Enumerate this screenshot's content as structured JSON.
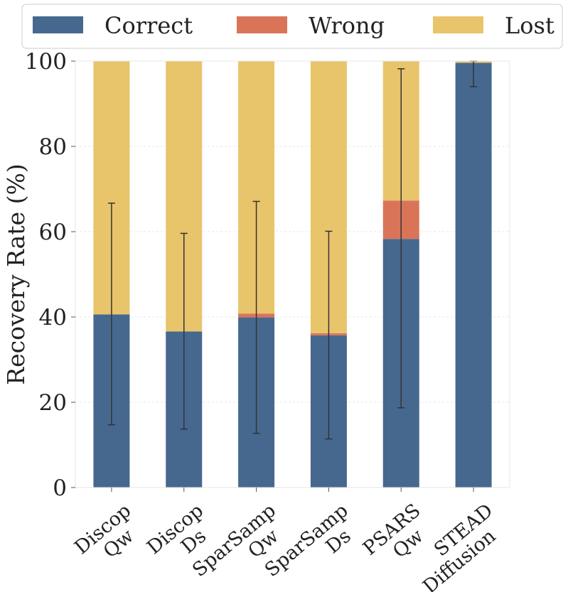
{
  "chart_data": {
    "type": "bar",
    "stacked": true,
    "categories": [
      [
        "Discop",
        "Qw"
      ],
      [
        "Discop",
        "Ds"
      ],
      [
        "SparSamp",
        "Qw"
      ],
      [
        "SparSamp",
        "Ds"
      ],
      [
        "PSARS",
        "Qw"
      ],
      [
        "STEAD",
        "Diffusion"
      ]
    ],
    "series": [
      {
        "name": "Correct",
        "color": "#46688f",
        "values": [
          40.6,
          36.6,
          39.9,
          35.7,
          58.3,
          99.6
        ]
      },
      {
        "name": "Wrong",
        "color": "#da7459",
        "values": [
          0.0,
          0.0,
          0.9,
          0.5,
          9.0,
          0.0
        ]
      },
      {
        "name": "Lost",
        "color": "#e8c46b",
        "values": [
          59.4,
          63.4,
          59.2,
          63.8,
          32.7,
          0.4
        ]
      }
    ],
    "error_bars": {
      "low": [
        14.7,
        13.7,
        12.7,
        11.4,
        18.7,
        94.0
      ],
      "high": [
        66.7,
        59.6,
        67.1,
        60.1,
        98.2,
        100.0
      ]
    },
    "xlabel": "",
    "ylabel": "Recovery Rate (%)",
    "ylim": [
      0,
      100
    ],
    "yticks": [
      0,
      20,
      40,
      60,
      80,
      100
    ],
    "grid": true,
    "legend": {
      "position": "top",
      "entries": [
        "Correct",
        "Wrong",
        "Lost"
      ]
    }
  }
}
